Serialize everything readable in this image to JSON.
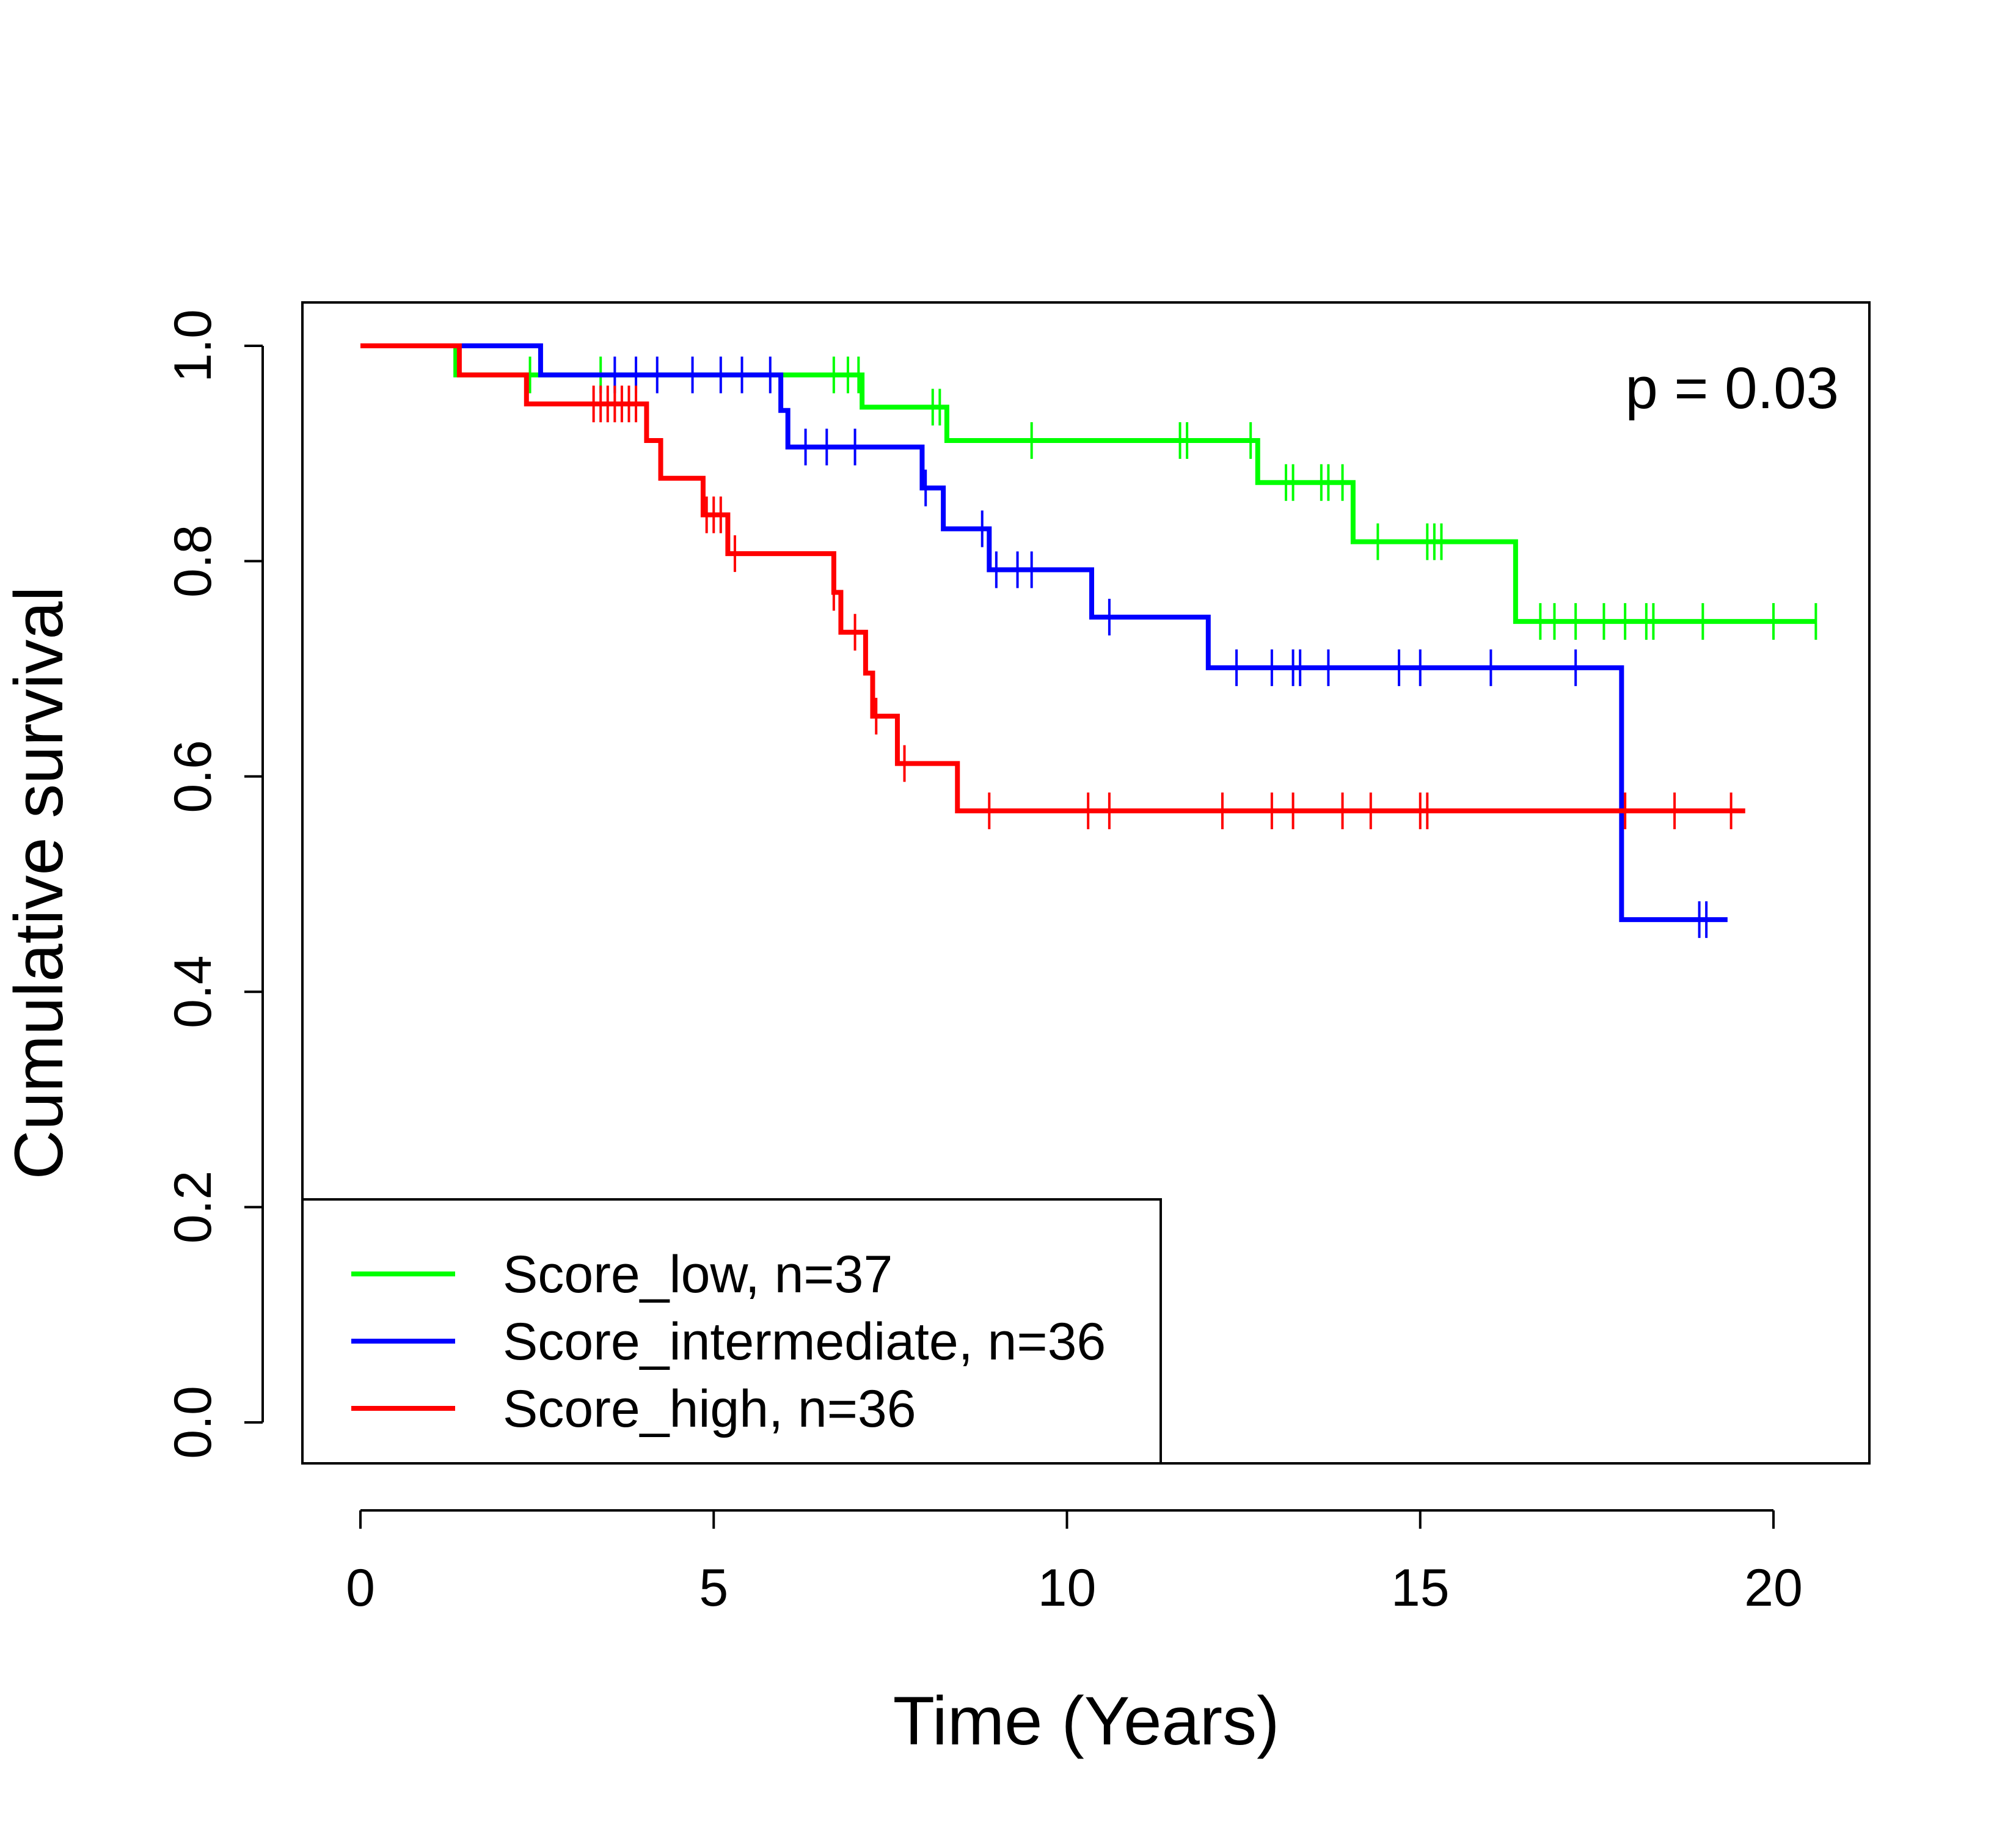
{
  "chart_data": {
    "type": "line",
    "subtype": "kaplan-meier step survival curves",
    "title": "",
    "xlabel": "Time (Years)",
    "ylabel": "Cumulative survival",
    "xlim": [
      0,
      20
    ],
    "ylim": [
      0,
      1
    ],
    "x_ticks": [
      0,
      5,
      10,
      15,
      20
    ],
    "x_tick_labels": [
      "0",
      "5",
      "10",
      "15",
      "20"
    ],
    "y_ticks": [
      0.0,
      0.2,
      0.4,
      0.6,
      0.8,
      1.0
    ],
    "y_tick_labels": [
      "0.0",
      "0.2",
      "0.4",
      "0.6",
      "0.8",
      "1.0"
    ],
    "grid": false,
    "legend_position": "bottom-left",
    "annotation": "p = 0.03",
    "series": [
      {
        "name": "Score_low, n=37",
        "color": "#00ff00",
        "end_time": 20.6,
        "steps": [
          [
            0,
            1.0
          ],
          [
            1.35,
            0.973
          ],
          [
            7.1,
            0.943
          ],
          [
            8.3,
            0.912
          ],
          [
            12.7,
            0.873
          ],
          [
            14.05,
            0.818
          ],
          [
            16.35,
            0.744
          ]
        ],
        "censored": [
          2.4,
          3.4,
          6.7,
          6.9,
          7.05,
          8.1,
          8.2,
          9.5,
          11.6,
          11.7,
          12.6,
          13.1,
          13.2,
          13.6,
          13.7,
          13.9,
          14.4,
          15.1,
          15.2,
          15.3,
          16.7,
          16.9,
          17.2,
          17.6,
          17.9,
          18.2,
          18.3,
          19.0,
          20.0,
          20.6
        ]
      },
      {
        "name": "Score_intermediate, n=36",
        "color": "#0000ff",
        "end_time": 19.35,
        "steps": [
          [
            0,
            1.0
          ],
          [
            2.55,
            0.973
          ],
          [
            5.95,
            0.94
          ],
          [
            6.05,
            0.906
          ],
          [
            7.95,
            0.868
          ],
          [
            8.25,
            0.83
          ],
          [
            8.9,
            0.792
          ],
          [
            10.35,
            0.748
          ],
          [
            12.0,
            0.701
          ],
          [
            17.85,
            0.467
          ]
        ],
        "censored": [
          3.6,
          3.9,
          4.2,
          4.7,
          5.1,
          5.4,
          5.8,
          6.3,
          6.6,
          7.0,
          8.0,
          8.8,
          9.0,
          9.3,
          9.5,
          10.6,
          12.4,
          12.9,
          13.2,
          13.3,
          13.7,
          14.7,
          15.0,
          16.0,
          17.2,
          18.95,
          19.05
        ]
      },
      {
        "name": "Score_high, n=36",
        "color": "#ff0000",
        "end_time": 19.6,
        "steps": [
          [
            0,
            1.0
          ],
          [
            1.4,
            0.973
          ],
          [
            2.35,
            0.946
          ],
          [
            4.05,
            0.912
          ],
          [
            4.25,
            0.877
          ],
          [
            4.85,
            0.843
          ],
          [
            5.2,
            0.807
          ],
          [
            6.7,
            0.771
          ],
          [
            6.8,
            0.734
          ],
          [
            7.15,
            0.696
          ],
          [
            7.25,
            0.656
          ],
          [
            7.6,
            0.612
          ],
          [
            8.45,
            0.568
          ]
        ],
        "censored": [
          3.3,
          3.4,
          3.5,
          3.6,
          3.7,
          3.8,
          3.9,
          4.9,
          5.0,
          5.1,
          5.3,
          6.7,
          7.0,
          7.3,
          7.7,
          8.9,
          10.3,
          10.6,
          12.2,
          12.9,
          13.2,
          13.9,
          14.3,
          15.0,
          15.1,
          17.9,
          18.6,
          19.4
        ]
      }
    ]
  }
}
